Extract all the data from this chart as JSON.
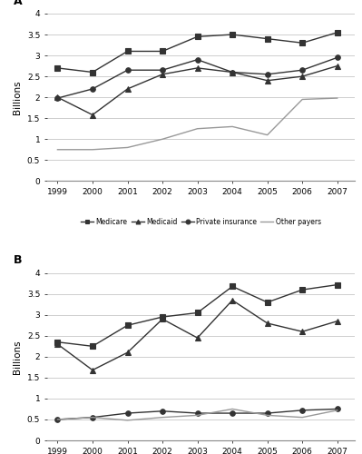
{
  "years": [
    1999,
    2000,
    2001,
    2002,
    2003,
    2004,
    2005,
    2006,
    2007
  ],
  "panel_A": {
    "label": "A",
    "Medicare": [
      2.7,
      2.6,
      3.1,
      3.1,
      3.45,
      3.5,
      3.4,
      3.3,
      3.55
    ],
    "Medicaid": [
      2.0,
      1.58,
      2.2,
      2.55,
      2.7,
      2.6,
      2.4,
      2.5,
      2.75
    ],
    "Private_insurance": [
      1.98,
      2.2,
      2.65,
      2.65,
      2.9,
      2.6,
      2.55,
      2.65,
      2.95
    ],
    "Other_payers": [
      0.75,
      0.75,
      0.8,
      1.0,
      1.25,
      1.3,
      1.1,
      1.95,
      1.98
    ],
    "ylim": [
      0,
      4
    ],
    "yticks": [
      0,
      0.5,
      1.0,
      1.5,
      2.0,
      2.5,
      3.0,
      3.5,
      4.0
    ]
  },
  "panel_B": {
    "label": "B",
    "Medicare": [
      2.35,
      2.25,
      2.75,
      2.95,
      3.05,
      3.68,
      3.3,
      3.6,
      3.72
    ],
    "Medicaid": [
      2.3,
      1.68,
      2.1,
      2.9,
      2.45,
      3.35,
      2.8,
      2.6,
      2.85
    ],
    "Private_insurance": [
      0.5,
      0.55,
      0.65,
      0.7,
      0.65,
      0.65,
      0.65,
      0.72,
      0.75
    ],
    "Other_payers": [
      0.5,
      0.55,
      0.48,
      0.55,
      0.6,
      0.75,
      0.6,
      0.55,
      0.72
    ],
    "ylim": [
      0,
      4
    ],
    "yticks": [
      0,
      0.5,
      1.0,
      1.5,
      2.0,
      2.5,
      3.0,
      3.5,
      4.0
    ]
  },
  "line_color": "#333333",
  "other_color": "#999999",
  "markers": {
    "Medicare": "s",
    "Medicaid": "^",
    "Private_insurance": "o",
    "Other_payers": null
  },
  "legend_labels": [
    "Medicare",
    "Medicaid",
    "Private insurance",
    "Other payers"
  ],
  "ylabel": "Billions",
  "marker_size": 4,
  "linewidth": 1.0
}
